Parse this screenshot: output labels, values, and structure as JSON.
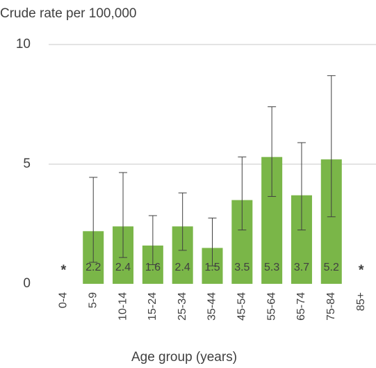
{
  "chart_data": {
    "type": "bar",
    "title": "Crude rate per 100,000",
    "x_label": "Age group (years)",
    "categories": [
      "0-4",
      "5-9",
      "10-14",
      "15-24",
      "25-34",
      "35-44",
      "45-54",
      "55-64",
      "65-74",
      "75-84",
      "85+"
    ],
    "values": [
      null,
      2.2,
      2.4,
      1.6,
      2.4,
      1.5,
      3.5,
      5.3,
      3.7,
      5.2,
      null
    ],
    "value_labels": [
      "*",
      "2.2",
      "2.4",
      "1.6",
      "2.4",
      "1.5",
      "3.5",
      "5.3",
      "3.7",
      "5.2",
      "*"
    ],
    "error_lower": [
      null,
      0.9,
      1.1,
      0.8,
      1.4,
      0.75,
      2.25,
      3.65,
      2.25,
      2.8,
      null
    ],
    "error_upper": [
      null,
      4.45,
      4.65,
      2.85,
      3.8,
      2.75,
      5.3,
      7.4,
      5.9,
      8.7,
      null
    ],
    "color": "#7ab648",
    "ylim": [
      0,
      10
    ],
    "yticks": [
      0,
      5,
      10
    ],
    "grid": true
  }
}
